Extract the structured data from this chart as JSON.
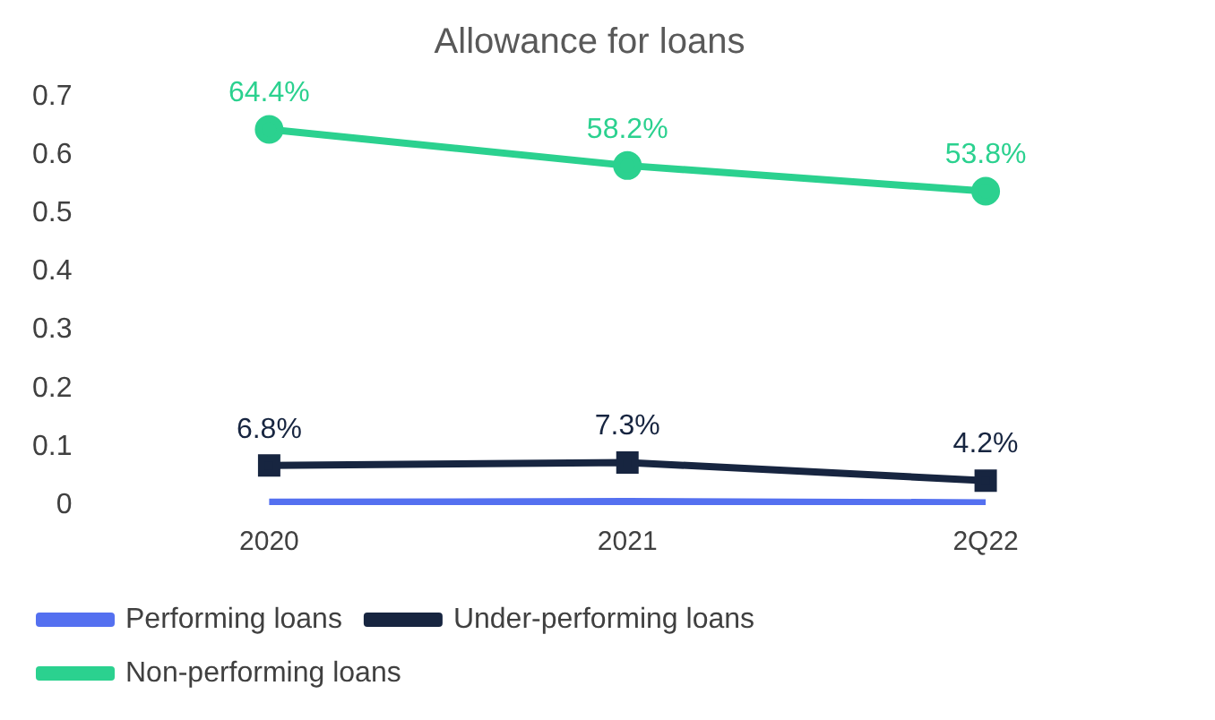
{
  "chart_data": {
    "type": "line",
    "title": "Allowance for loans",
    "categories": [
      "2020",
      "2021",
      "2Q22"
    ],
    "series": [
      {
        "name": "Performing loans",
        "color": "#5470f0",
        "marker": "none",
        "values": [
          0.005,
          0.006,
          0.004
        ]
      },
      {
        "name": "Under-performing loans",
        "color": "#172540",
        "marker": "square",
        "values": [
          0.068,
          0.073,
          0.042
        ],
        "value_labels": [
          "6.8%",
          "7.3%",
          "4.2%"
        ]
      },
      {
        "name": "Non-performing loans",
        "color": "#2bd18f",
        "marker": "circle",
        "values": [
          0.644,
          0.582,
          0.538
        ],
        "value_labels": [
          "64.4%",
          "58.2%",
          "53.8%"
        ]
      }
    ],
    "ylim": [
      0,
      0.7
    ],
    "yticks": [
      0,
      0.1,
      0.2,
      0.3,
      0.4,
      0.5,
      0.6,
      0.7
    ],
    "grid": false,
    "legend": "bottom"
  }
}
